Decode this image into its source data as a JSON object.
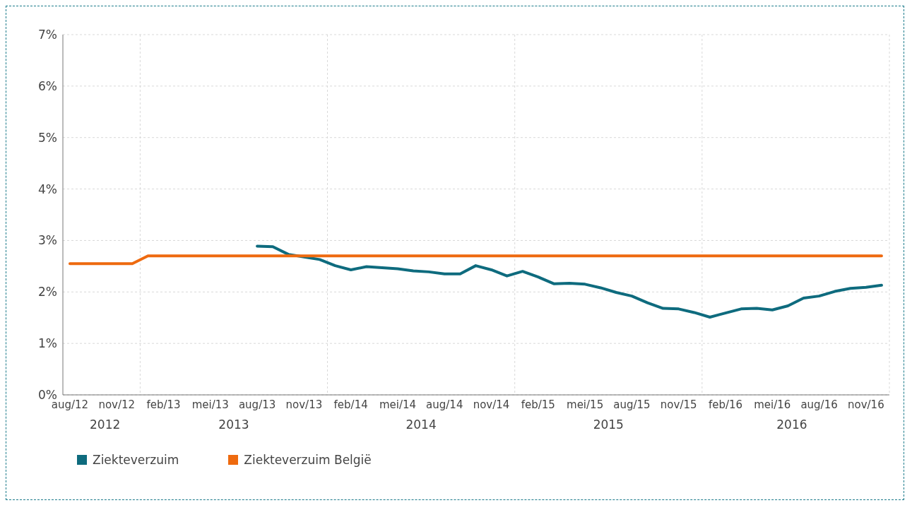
{
  "chart_data": {
    "type": "line",
    "categories": [
      "aug/12",
      null,
      null,
      "nov/12",
      null,
      null,
      "feb/13",
      null,
      null,
      "mei/13",
      null,
      null,
      "aug/13",
      null,
      null,
      "nov/13",
      null,
      null,
      "feb/14",
      null,
      null,
      "mei/14",
      null,
      null,
      "aug/14",
      null,
      null,
      "nov/14",
      null,
      null,
      "feb/15",
      null,
      null,
      "mei/15",
      null,
      null,
      "aug/15",
      null,
      null,
      "nov/15",
      null,
      null,
      "feb/16",
      null,
      null,
      "mei/16",
      null,
      null,
      "aug/16",
      null,
      null,
      "nov/16",
      null
    ],
    "series": [
      {
        "name": "Ziekteverzuim",
        "color": "#0e6b7e",
        "values": [
          null,
          null,
          null,
          null,
          null,
          null,
          null,
          null,
          null,
          null,
          null,
          null,
          2.89,
          2.88,
          2.73,
          2.68,
          2.63,
          2.51,
          2.43,
          2.49,
          2.47,
          2.45,
          2.41,
          2.39,
          2.35,
          2.35,
          2.51,
          2.43,
          2.31,
          2.4,
          2.29,
          2.16,
          2.17,
          2.15,
          2.08,
          1.99,
          1.92,
          1.79,
          1.68,
          1.67,
          1.6,
          1.51,
          1.59,
          1.67,
          1.68,
          1.65,
          1.73,
          1.88,
          1.92,
          2.01,
          2.07,
          2.09,
          2.13
        ]
      },
      {
        "name": "Ziekteverzuim België",
        "color": "#ee6a0f",
        "values": [
          2.55,
          2.55,
          2.55,
          2.55,
          2.55,
          2.7,
          2.7,
          2.7,
          2.7,
          2.7,
          2.7,
          2.7,
          2.7,
          2.7,
          2.7,
          2.7,
          2.7,
          2.7,
          2.7,
          2.7,
          2.7,
          2.7,
          2.7,
          2.7,
          2.7,
          2.7,
          2.7,
          2.7,
          2.7,
          2.7,
          2.7,
          2.7,
          2.7,
          2.7,
          2.7,
          2.7,
          2.7,
          2.7,
          2.7,
          2.7,
          2.7,
          2.7,
          2.7,
          2.7,
          2.7,
          2.7,
          2.7,
          2.7,
          2.7,
          2.7,
          2.7,
          2.7,
          2.7
        ]
      }
    ],
    "ylim": [
      0,
      7
    ],
    "yticks": [
      {
        "value": 0,
        "label": "0%"
      },
      {
        "value": 1,
        "label": "1%"
      },
      {
        "value": 2,
        "label": "2%"
      },
      {
        "value": 3,
        "label": "3%"
      },
      {
        "value": 4,
        "label": "4%"
      },
      {
        "value": 5,
        "label": "5%"
      },
      {
        "value": 6,
        "label": "6%"
      },
      {
        "value": 7,
        "label": "7%"
      }
    ],
    "annotations": [
      "2012",
      "2013",
      "2014",
      "2015",
      "2016"
    ],
    "grid": true,
    "legend": "bottom left",
    "marker": "none",
    "line_style": "solid"
  }
}
